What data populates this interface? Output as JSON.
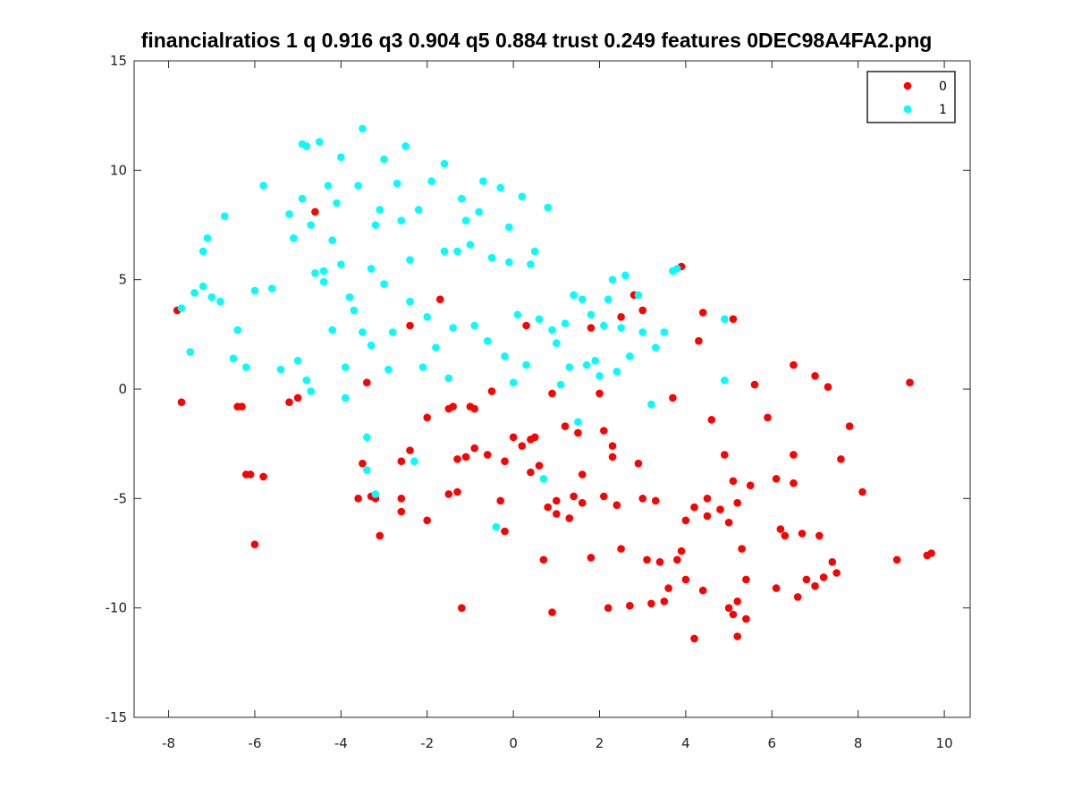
{
  "chart_data": {
    "type": "scatter",
    "title": "financialratios 1 q 0.916 q3 0.904 q5 0.884 trust 0.249 features 0DEC98A4FA2.png",
    "xlabel": "",
    "ylabel": "",
    "xlim": [
      -8.8,
      10.6
    ],
    "ylim": [
      -15,
      15
    ],
    "x_ticks": [
      -8,
      -6,
      -4,
      -2,
      0,
      2,
      4,
      6,
      8,
      10
    ],
    "y_ticks": [
      -15,
      -10,
      -5,
      0,
      5,
      10,
      15
    ],
    "grid": false,
    "legend_position": "top-right",
    "colors": {
      "0": "#ff0000",
      "1": "#00ffff"
    },
    "series": [
      {
        "name": "0",
        "points": [
          [
            -7.8,
            3.6
          ],
          [
            -7.7,
            -0.6
          ],
          [
            -6.4,
            -0.8
          ],
          [
            -6.3,
            -0.8
          ],
          [
            -6.2,
            -3.9
          ],
          [
            -6.1,
            -3.9
          ],
          [
            -6.0,
            -7.1
          ],
          [
            -5.8,
            -4.0
          ],
          [
            -5.2,
            -0.6
          ],
          [
            -5.0,
            -0.4
          ],
          [
            -4.6,
            8.1
          ],
          [
            -3.6,
            -5.0
          ],
          [
            -3.5,
            -3.4
          ],
          [
            -3.4,
            0.3
          ],
          [
            -3.3,
            -4.9
          ],
          [
            -3.2,
            -5.0
          ],
          [
            -3.1,
            -6.7
          ],
          [
            -2.6,
            -3.3
          ],
          [
            -2.6,
            -5.0
          ],
          [
            -2.6,
            -5.6
          ],
          [
            -2.4,
            2.9
          ],
          [
            -2.4,
            -2.8
          ],
          [
            -2.0,
            -6.0
          ],
          [
            -2.0,
            -1.3
          ],
          [
            -1.7,
            4.1
          ],
          [
            -1.5,
            -0.9
          ],
          [
            -1.4,
            -0.8
          ],
          [
            -1.5,
            -4.8
          ],
          [
            -1.3,
            -3.2
          ],
          [
            -1.3,
            -4.7
          ],
          [
            -1.2,
            -10.0
          ],
          [
            -1.1,
            -3.1
          ],
          [
            -1.0,
            -0.8
          ],
          [
            -0.9,
            -0.9
          ],
          [
            -0.9,
            -2.7
          ],
          [
            -0.6,
            -3.0
          ],
          [
            -0.5,
            -0.1
          ],
          [
            -0.3,
            -5.1
          ],
          [
            -0.2,
            -6.5
          ],
          [
            -0.2,
            -3.3
          ],
          [
            0.0,
            -2.2
          ],
          [
            0.2,
            -2.6
          ],
          [
            0.3,
            2.9
          ],
          [
            0.4,
            -3.8
          ],
          [
            0.4,
            -2.3
          ],
          [
            0.5,
            -2.2
          ],
          [
            0.6,
            -3.5
          ],
          [
            0.7,
            -7.8
          ],
          [
            0.8,
            -5.4
          ],
          [
            0.9,
            -10.2
          ],
          [
            0.9,
            -0.2
          ],
          [
            1.0,
            -5.1
          ],
          [
            1.0,
            -5.7
          ],
          [
            1.2,
            -1.7
          ],
          [
            1.3,
            -5.9
          ],
          [
            1.4,
            -4.9
          ],
          [
            1.5,
            -2.0
          ],
          [
            1.6,
            -5.2
          ],
          [
            1.6,
            -3.9
          ],
          [
            1.8,
            -7.7
          ],
          [
            1.8,
            2.8
          ],
          [
            2.0,
            -0.2
          ],
          [
            2.1,
            -4.9
          ],
          [
            2.1,
            -1.9
          ],
          [
            2.2,
            -10.0
          ],
          [
            2.3,
            -2.6
          ],
          [
            2.3,
            -3.1
          ],
          [
            2.4,
            -5.3
          ],
          [
            2.5,
            3.3
          ],
          [
            2.5,
            -7.3
          ],
          [
            2.7,
            -9.9
          ],
          [
            2.8,
            4.3
          ],
          [
            3.0,
            3.6
          ],
          [
            2.9,
            -3.4
          ],
          [
            3.0,
            -5.0
          ],
          [
            3.1,
            -7.8
          ],
          [
            3.2,
            -9.8
          ],
          [
            3.3,
            -5.1
          ],
          [
            3.4,
            -7.9
          ],
          [
            3.5,
            -9.7
          ],
          [
            3.6,
            -9.1
          ],
          [
            3.7,
            -0.4
          ],
          [
            3.8,
            -7.8
          ],
          [
            3.9,
            5.6
          ],
          [
            3.9,
            -7.4
          ],
          [
            4.0,
            -6.0
          ],
          [
            4.0,
            -8.7
          ],
          [
            4.2,
            -11.4
          ],
          [
            4.2,
            -5.4
          ],
          [
            4.3,
            2.2
          ],
          [
            4.4,
            3.5
          ],
          [
            4.4,
            -9.2
          ],
          [
            4.5,
            -5.0
          ],
          [
            4.5,
            -5.8
          ],
          [
            4.6,
            -1.4
          ],
          [
            4.8,
            -5.5
          ],
          [
            4.9,
            -3.0
          ],
          [
            5.0,
            -6.1
          ],
          [
            5.0,
            -10.0
          ],
          [
            5.1,
            3.2
          ],
          [
            5.1,
            -4.2
          ],
          [
            5.1,
            -10.3
          ],
          [
            5.2,
            -5.2
          ],
          [
            5.2,
            -9.7
          ],
          [
            5.2,
            -11.3
          ],
          [
            5.3,
            -7.3
          ],
          [
            5.4,
            -10.5
          ],
          [
            5.4,
            -8.7
          ],
          [
            5.5,
            -4.4
          ],
          [
            5.6,
            0.2
          ],
          [
            5.9,
            -1.3
          ],
          [
            6.1,
            -4.1
          ],
          [
            6.1,
            -9.1
          ],
          [
            6.2,
            -6.4
          ],
          [
            6.3,
            -6.7
          ],
          [
            6.5,
            1.1
          ],
          [
            6.5,
            -3.0
          ],
          [
            6.5,
            -4.3
          ],
          [
            6.6,
            -9.5
          ],
          [
            6.7,
            -6.6
          ],
          [
            6.8,
            -8.7
          ],
          [
            7.0,
            -9.0
          ],
          [
            7.0,
            0.6
          ],
          [
            7.1,
            -6.7
          ],
          [
            7.2,
            -8.6
          ],
          [
            7.3,
            0.1
          ],
          [
            7.4,
            -7.9
          ],
          [
            7.5,
            -8.4
          ],
          [
            7.6,
            -3.2
          ],
          [
            7.8,
            -1.7
          ],
          [
            8.1,
            -4.7
          ],
          [
            8.9,
            -7.8
          ],
          [
            9.2,
            0.3
          ],
          [
            9.6,
            -7.6
          ],
          [
            9.7,
            -7.5
          ]
        ]
      },
      {
        "name": "1",
        "points": [
          [
            -7.7,
            3.7
          ],
          [
            -7.5,
            1.7
          ],
          [
            -7.4,
            4.4
          ],
          [
            -7.2,
            4.7
          ],
          [
            -7.2,
            6.3
          ],
          [
            -7.1,
            6.9
          ],
          [
            -7.0,
            4.2
          ],
          [
            -6.8,
            4.0
          ],
          [
            -6.7,
            7.9
          ],
          [
            -6.5,
            1.4
          ],
          [
            -6.4,
            2.7
          ],
          [
            -6.2,
            1.0
          ],
          [
            -6.0,
            4.5
          ],
          [
            -5.8,
            9.3
          ],
          [
            -5.6,
            4.6
          ],
          [
            -5.4,
            0.9
          ],
          [
            -5.2,
            8.0
          ],
          [
            -5.1,
            6.9
          ],
          [
            -5.0,
            1.3
          ],
          [
            -4.9,
            11.2
          ],
          [
            -4.9,
            8.7
          ],
          [
            -4.8,
            11.1
          ],
          [
            -4.8,
            0.4
          ],
          [
            -4.7,
            -0.1
          ],
          [
            -4.7,
            7.5
          ],
          [
            -4.6,
            5.3
          ],
          [
            -4.5,
            11.3
          ],
          [
            -4.4,
            5.4
          ],
          [
            -4.4,
            4.9
          ],
          [
            -4.3,
            9.3
          ],
          [
            -4.2,
            2.7
          ],
          [
            -4.2,
            6.8
          ],
          [
            -4.1,
            8.5
          ],
          [
            -4.0,
            5.7
          ],
          [
            -4.0,
            10.6
          ],
          [
            -3.9,
            1.0
          ],
          [
            -3.9,
            -0.4
          ],
          [
            -3.8,
            4.2
          ],
          [
            -3.7,
            3.6
          ],
          [
            -3.6,
            9.3
          ],
          [
            -3.5,
            11.9
          ],
          [
            -3.5,
            2.6
          ],
          [
            -3.4,
            -2.2
          ],
          [
            -3.4,
            -3.7
          ],
          [
            -3.3,
            2.0
          ],
          [
            -3.3,
            5.5
          ],
          [
            -3.2,
            7.5
          ],
          [
            -3.2,
            -4.8
          ],
          [
            -3.1,
            8.2
          ],
          [
            -3.0,
            10.5
          ],
          [
            -3.0,
            4.8
          ],
          [
            -2.9,
            0.9
          ],
          [
            -2.8,
            2.6
          ],
          [
            -2.7,
            9.4
          ],
          [
            -2.6,
            7.7
          ],
          [
            -2.5,
            11.1
          ],
          [
            -2.4,
            5.9
          ],
          [
            -2.4,
            4.0
          ],
          [
            -2.3,
            -3.3
          ],
          [
            -2.2,
            8.2
          ],
          [
            -2.1,
            1.0
          ],
          [
            -2.0,
            3.3
          ],
          [
            -1.9,
            9.5
          ],
          [
            -1.8,
            1.9
          ],
          [
            -1.6,
            6.3
          ],
          [
            -1.6,
            10.3
          ],
          [
            -1.5,
            0.5
          ],
          [
            -1.4,
            2.8
          ],
          [
            -1.3,
            6.3
          ],
          [
            -1.2,
            8.7
          ],
          [
            -1.1,
            7.7
          ],
          [
            -1.0,
            6.6
          ],
          [
            -0.9,
            2.9
          ],
          [
            -0.8,
            8.1
          ],
          [
            -0.7,
            9.5
          ],
          [
            -0.6,
            2.2
          ],
          [
            -0.5,
            6.0
          ],
          [
            -0.4,
            -6.3
          ],
          [
            -0.3,
            9.2
          ],
          [
            -0.2,
            1.5
          ],
          [
            -0.1,
            7.4
          ],
          [
            -0.1,
            5.8
          ],
          [
            0.0,
            0.3
          ],
          [
            0.1,
            3.4
          ],
          [
            0.2,
            8.8
          ],
          [
            0.3,
            1.1
          ],
          [
            0.4,
            5.7
          ],
          [
            0.5,
            6.3
          ],
          [
            0.6,
            3.2
          ],
          [
            0.7,
            -4.1
          ],
          [
            0.8,
            8.3
          ],
          [
            0.9,
            2.7
          ],
          [
            1.0,
            2.1
          ],
          [
            1.1,
            0.2
          ],
          [
            1.2,
            3.0
          ],
          [
            1.3,
            1.0
          ],
          [
            1.4,
            4.3
          ],
          [
            1.5,
            -1.5
          ],
          [
            1.6,
            4.1
          ],
          [
            1.7,
            1.1
          ],
          [
            1.8,
            3.4
          ],
          [
            1.9,
            1.3
          ],
          [
            2.0,
            0.6
          ],
          [
            2.1,
            2.9
          ],
          [
            2.2,
            4.1
          ],
          [
            2.3,
            5.0
          ],
          [
            2.4,
            0.8
          ],
          [
            2.5,
            2.8
          ],
          [
            2.6,
            5.2
          ],
          [
            2.7,
            1.5
          ],
          [
            2.9,
            4.3
          ],
          [
            3.0,
            2.6
          ],
          [
            3.2,
            -0.7
          ],
          [
            3.3,
            1.9
          ],
          [
            3.5,
            2.6
          ],
          [
            3.7,
            5.4
          ],
          [
            3.8,
            5.5
          ],
          [
            4.9,
            0.4
          ],
          [
            4.9,
            3.2
          ]
        ]
      }
    ]
  }
}
